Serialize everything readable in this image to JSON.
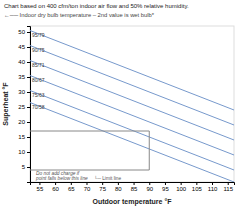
{
  "chart_data": {
    "type": "line",
    "title": "Chart based on 400 cfm/ton indoor air flow and 50% relative humidity.",
    "subtitle": "←── Indoor dry bulb temperature – 2nd value is wet bulb*",
    "xlabel": "Outdoor temperature °F",
    "ylabel": "Superheat °F",
    "xlim": [
      52,
      117
    ],
    "ylim": [
      0,
      52
    ],
    "xticks": [
      55,
      60,
      65,
      70,
      75,
      80,
      85,
      90,
      95,
      100,
      105,
      110,
      115
    ],
    "yticks": [
      5,
      10,
      15,
      20,
      25,
      30,
      35,
      40,
      45,
      50
    ],
    "grid": false,
    "series": [
      {
        "name": "95/79",
        "color": "#7799cc",
        "x": [
          52,
          117
        ],
        "values": [
          50.5,
          24
        ]
      },
      {
        "name": "90/75",
        "color": "#7799cc",
        "x": [
          52,
          117
        ],
        "values": [
          45.5,
          19
        ]
      },
      {
        "name": "85/71",
        "color": "#7799cc",
        "x": [
          52,
          117
        ],
        "values": [
          40.5,
          14
        ]
      },
      {
        "name": "80/67",
        "color": "#7799cc",
        "x": [
          52,
          117
        ],
        "values": [
          35.5,
          9
        ]
      },
      {
        "name": "75/63",
        "color": "#7799cc",
        "x": [
          52,
          117
        ],
        "values": [
          30.5,
          4
        ]
      },
      {
        "name": "70/58",
        "color": "#7799cc",
        "x": [
          52,
          117
        ],
        "values": [
          26.5,
          0
        ]
      },
      {
        "color": "#888888",
        "x": [
          52,
          90,
          90,
          52
        ],
        "values": [
          17,
          17,
          4,
          4
        ]
      }
    ],
    "annotations": [
      "Do not add charge if\npoint falls below this line",
      "└─ Limit line"
    ]
  }
}
